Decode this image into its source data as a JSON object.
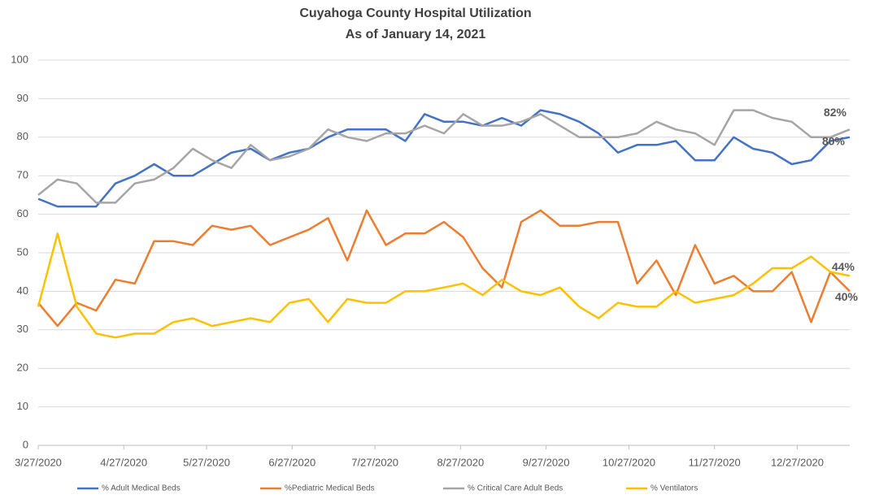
{
  "chart_data": {
    "type": "line",
    "title": "Cuyahoga County Hospital Utilization",
    "subtitle": "As of January 14, 2021",
    "xlim": [
      "2020-03-27",
      "2021-01-15"
    ],
    "xticks": [
      {
        "value": "2020-03-27",
        "label": "3/27/2020"
      },
      {
        "value": "2020-04-27",
        "label": "4/27/2020"
      },
      {
        "value": "2020-05-27",
        "label": "5/27/2020"
      },
      {
        "value": "2020-06-27",
        "label": "6/27/2020"
      },
      {
        "value": "2020-07-27",
        "label": "7/27/2020"
      },
      {
        "value": "2020-08-27",
        "label": "8/27/2020"
      },
      {
        "value": "2020-09-27",
        "label": "9/27/2020"
      },
      {
        "value": "2020-10-27",
        "label": "10/27/2020"
      },
      {
        "value": "2020-11-27",
        "label": "11/27/2020"
      },
      {
        "value": "2020-12-27",
        "label": "12/27/2020"
      }
    ],
    "ylim": [
      0,
      100
    ],
    "yticks": [
      0,
      10,
      20,
      30,
      40,
      50,
      60,
      70,
      80,
      90,
      100
    ],
    "grid": true,
    "legend": "bottom",
    "x_start": "2020-03-27",
    "x_step_days": 7,
    "series": [
      {
        "name": "% Adult Medical Beds",
        "color": "#4472c4",
        "end_label": "80%",
        "values": [
          64,
          62,
          62,
          62,
          68,
          70,
          73,
          70,
          70,
          73,
          76,
          77,
          74,
          76,
          77,
          80,
          82,
          82,
          82,
          79,
          86,
          84,
          84,
          83,
          85,
          83,
          87,
          86,
          84,
          81,
          76,
          78,
          78,
          79,
          74,
          74,
          80,
          77,
          76,
          73,
          74,
          79,
          80
        ]
      },
      {
        "name": "%Pediatric Medical Beds",
        "color": "#ed7d31",
        "end_label": "40%",
        "values": [
          37,
          31,
          37,
          35,
          43,
          42,
          53,
          53,
          52,
          57,
          56,
          57,
          52,
          54,
          56,
          59,
          48,
          61,
          52,
          55,
          55,
          58,
          54,
          46,
          41,
          58,
          61,
          57,
          57,
          58,
          58,
          42,
          48,
          39,
          52,
          42,
          44,
          40,
          40,
          45,
          32,
          45,
          40
        ]
      },
      {
        "name": "% Critical Care Adult Beds",
        "color": "#a5a5a5",
        "end_label": "82%",
        "values": [
          65,
          69,
          68,
          63,
          63,
          68,
          69,
          72,
          77,
          74,
          72,
          78,
          74,
          75,
          77,
          82,
          80,
          79,
          81,
          81,
          83,
          81,
          86,
          83,
          83,
          84,
          86,
          83,
          80,
          80,
          80,
          81,
          84,
          82,
          81,
          78,
          87,
          87,
          85,
          84,
          80,
          80,
          82
        ]
      },
      {
        "name": "% Ventilators",
        "color": "#ffc000",
        "end_label": "44%",
        "values": [
          36,
          55,
          36,
          29,
          28,
          29,
          29,
          32,
          33,
          31,
          32,
          33,
          32,
          37,
          38,
          32,
          38,
          37,
          37,
          40,
          40,
          41,
          42,
          39,
          43,
          40,
          39,
          41,
          36,
          33,
          37,
          36,
          36,
          40,
          37,
          38,
          39,
          42,
          46,
          46,
          49,
          45,
          44
        ]
      }
    ]
  }
}
